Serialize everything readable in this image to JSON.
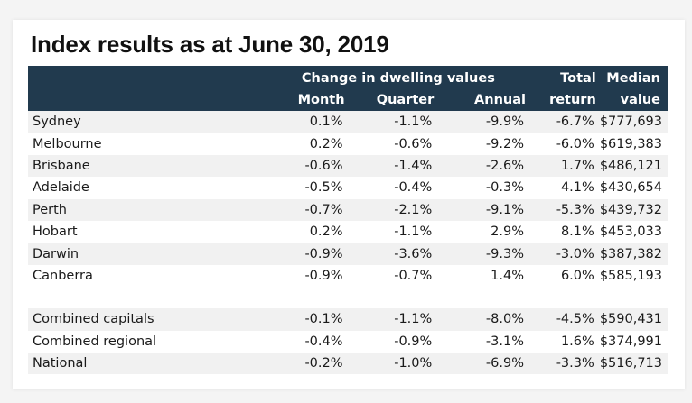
{
  "title": "Index results as at June 30, 2019",
  "header": {
    "group_label": "Change in dwelling values",
    "month": "Month",
    "quarter": "Quarter",
    "annual": "Annual",
    "total_line1": "Total",
    "total_line2": "return",
    "median_line1": "Median",
    "median_line2": "value"
  },
  "rows": [
    {
      "name": "Sydney",
      "month": "0.1%",
      "quarter": "-1.1%",
      "annual": "-9.9%",
      "total": "-6.7%",
      "median": "$777,693"
    },
    {
      "name": "Melbourne",
      "month": "0.2%",
      "quarter": "-0.6%",
      "annual": "-9.2%",
      "total": "-6.0%",
      "median": "$619,383"
    },
    {
      "name": "Brisbane",
      "month": "-0.6%",
      "quarter": "-1.4%",
      "annual": "-2.6%",
      "total": "1.7%",
      "median": "$486,121"
    },
    {
      "name": "Adelaide",
      "month": "-0.5%",
      "quarter": "-0.4%",
      "annual": "-0.3%",
      "total": "4.1%",
      "median": "$430,654"
    },
    {
      "name": "Perth",
      "month": "-0.7%",
      "quarter": "-2.1%",
      "annual": "-9.1%",
      "total": "-5.3%",
      "median": "$439,732"
    },
    {
      "name": "Hobart",
      "month": "0.2%",
      "quarter": "-1.1%",
      "annual": "2.9%",
      "total": "8.1%",
      "median": "$453,033"
    },
    {
      "name": "Darwin",
      "month": "-0.9%",
      "quarter": "-3.6%",
      "annual": "-9.3%",
      "total": "-3.0%",
      "median": "$387,382"
    },
    {
      "name": "Canberra",
      "month": "-0.9%",
      "quarter": "-0.7%",
      "annual": "1.4%",
      "total": "6.0%",
      "median": "$585,193"
    }
  ],
  "summary_rows": [
    {
      "name": "Combined capitals",
      "month": "-0.1%",
      "quarter": "-1.1%",
      "annual": "-8.0%",
      "total": "-4.5%",
      "median": "$590,431"
    },
    {
      "name": "Combined regional",
      "month": "-0.4%",
      "quarter": "-0.9%",
      "annual": "-3.1%",
      "total": "1.6%",
      "median": "$374,991"
    },
    {
      "name": "National",
      "month": "-0.2%",
      "quarter": "-1.0%",
      "annual": "-6.9%",
      "total": "-3.3%",
      "median": "$516,713"
    }
  ],
  "colors": {
    "header_bg": "#213a4e",
    "header_text": "#ffffff",
    "row_alt": "#f1f1f1"
  }
}
